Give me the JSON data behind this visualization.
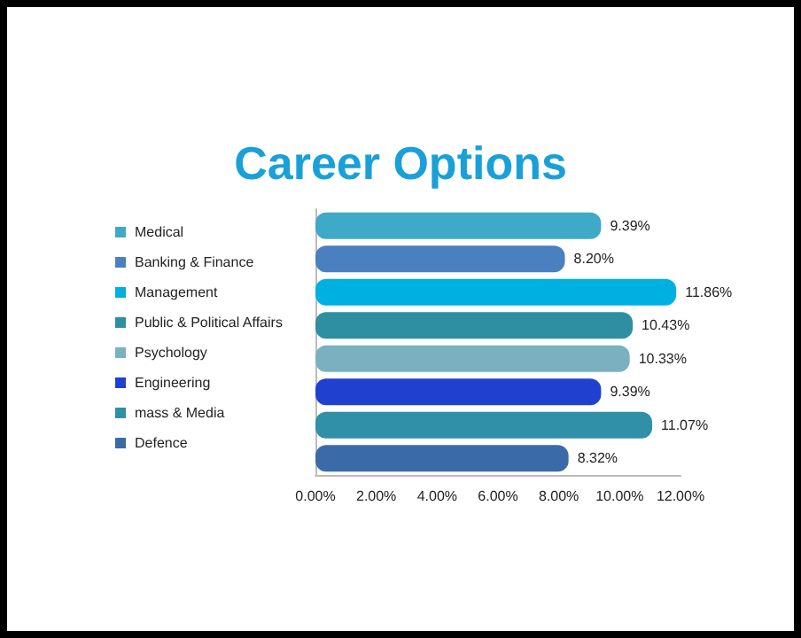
{
  "chart_data": {
    "type": "bar",
    "orientation": "horizontal",
    "stacked": true,
    "title": "Career Options",
    "categories": [
      null,
      null,
      null,
      null,
      null,
      null,
      null,
      null
    ],
    "series": [
      {
        "name": "Medical",
        "color": "#3fa9c8",
        "values": [
          9.39,
          null,
          null,
          null,
          null,
          null,
          null,
          null
        ],
        "value_labels": [
          "9.39%",
          null,
          null,
          null,
          null,
          null,
          null,
          null
        ]
      },
      {
        "name": "Banking & Finance",
        "color": "#4a7fc0",
        "values": [
          null,
          8.2,
          null,
          null,
          null,
          null,
          null,
          null
        ],
        "value_labels": [
          null,
          "8.20%",
          null,
          null,
          null,
          null,
          null,
          null
        ]
      },
      {
        "name": "Management",
        "color": "#00b0e0",
        "values": [
          null,
          null,
          11.86,
          null,
          null,
          null,
          null,
          null
        ],
        "value_labels": [
          null,
          null,
          "11.86%",
          null,
          null,
          null,
          null,
          null
        ]
      },
      {
        "name": "Public & Political Affairs",
        "color": "#2e8fa3",
        "values": [
          null,
          null,
          null,
          10.43,
          null,
          null,
          null,
          null
        ],
        "value_labels": [
          null,
          null,
          null,
          "10.43%",
          null,
          null,
          null,
          null
        ]
      },
      {
        "name": "Psychology",
        "color": "#7ab0c0",
        "values": [
          null,
          null,
          null,
          null,
          10.33,
          null,
          null,
          null
        ],
        "value_labels": [
          null,
          null,
          null,
          null,
          "10.33%",
          null,
          null,
          null
        ]
      },
      {
        "name": "Engineering",
        "color": "#2040d0",
        "values": [
          null,
          null,
          null,
          null,
          null,
          9.39,
          null,
          null
        ],
        "value_labels": [
          null,
          null,
          null,
          null,
          null,
          "9.39%",
          null,
          null
        ]
      },
      {
        "name": "mass & Media",
        "color": "#3090a8",
        "values": [
          null,
          null,
          null,
          null,
          null,
          null,
          11.07,
          null
        ],
        "value_labels": [
          null,
          null,
          null,
          null,
          null,
          null,
          "11.07%",
          null
        ]
      },
      {
        "name": "Defence",
        "color": "#3b6aa8",
        "values": [
          null,
          null,
          null,
          null,
          null,
          null,
          null,
          8.32
        ],
        "value_labels": [
          null,
          null,
          null,
          null,
          null,
          null,
          null,
          "8.32%"
        ]
      }
    ],
    "xlim": [
      0,
      12
    ],
    "xticks": [
      {
        "value": 0,
        "label": "0.00%"
      },
      {
        "value": 2,
        "label": "2.00%"
      },
      {
        "value": 4,
        "label": "4.00%"
      },
      {
        "value": 6,
        "label": "6.00%"
      },
      {
        "value": 8,
        "label": "8.00%"
      },
      {
        "value": 10,
        "label": "10.00%"
      },
      {
        "value": 12,
        "label": "12.00%"
      }
    ],
    "grid": false,
    "legend": "left"
  }
}
